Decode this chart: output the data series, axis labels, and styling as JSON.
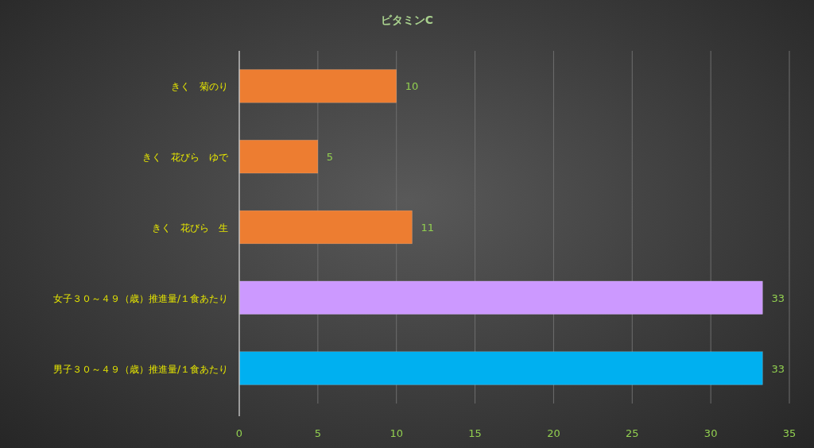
{
  "chart_data": {
    "type": "bar",
    "orientation": "horizontal",
    "title": "ビタミンC",
    "categories": [
      "きく　菊のり",
      "きく　花びら　ゆで",
      "きく　花びら　生",
      "女子３０～４９（歳）推進量/１食あたり",
      "男子３０～４９（歳）推進量/１食あたり"
    ],
    "values": [
      10,
      5,
      11,
      33.3,
      33.3
    ],
    "value_labels": [
      "10",
      "5",
      "11",
      "33",
      "33"
    ],
    "colors": [
      "#ed7d31",
      "#ed7d31",
      "#ed7d31",
      "#cc99ff",
      "#00b0f0"
    ],
    "xlim": [
      0,
      35
    ],
    "xticks": [
      0,
      5,
      10,
      15,
      20,
      25,
      30,
      35
    ],
    "grid": "x"
  }
}
